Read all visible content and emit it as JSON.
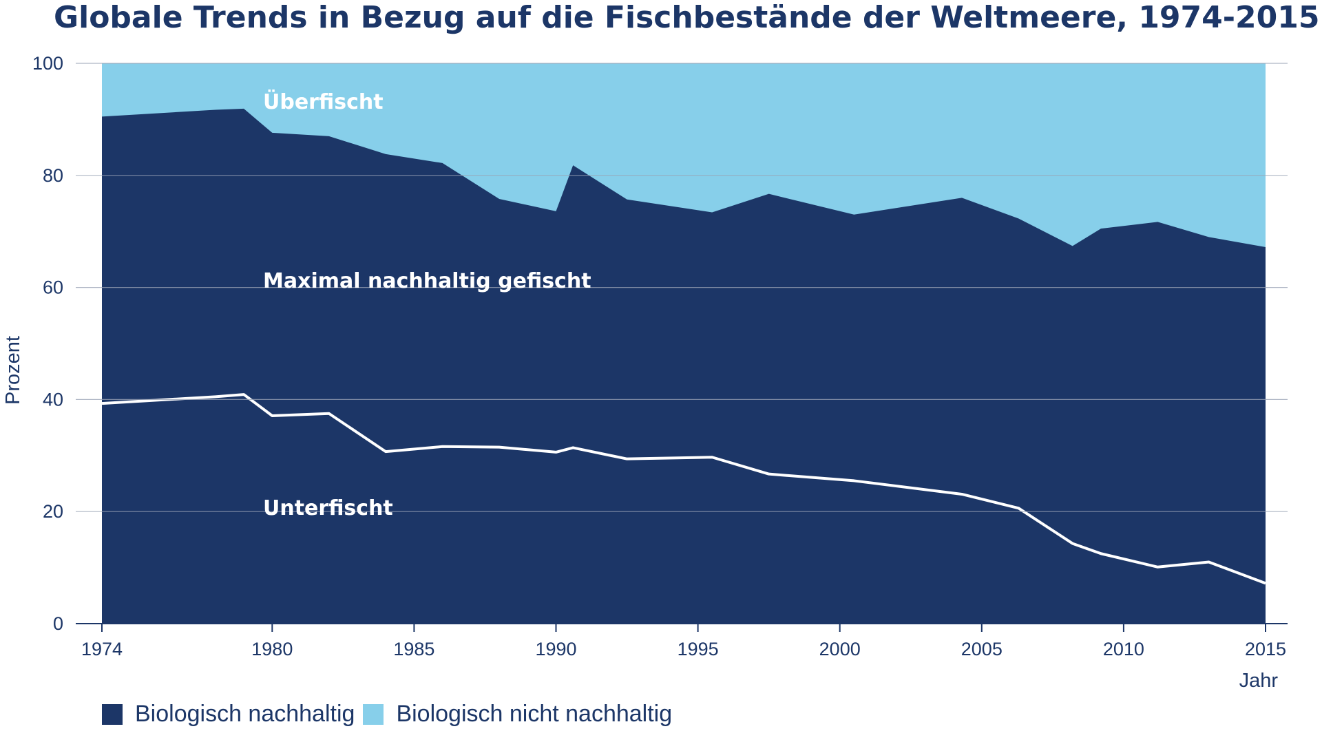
{
  "colors": {
    "sustainable": "#1c3667",
    "unsustainable": "#87cfea",
    "line": "#ffffff",
    "grid": "#9aa3b5",
    "text": "#1c3667"
  },
  "chart_data": {
    "type": "area",
    "title": "Globale Trends in Bezug auf die Fischbestände der Weltmeere, 1974-2015",
    "xlabel": "Jahr",
    "ylabel": "Prozent",
    "xlim": [
      1974,
      2015
    ],
    "ylim": [
      0,
      100
    ],
    "xticks": [
      "1974",
      "1980",
      "1985",
      "1990",
      "1995",
      "2000",
      "2005",
      "2010",
      "2015"
    ],
    "yticks": [
      "0",
      "20",
      "40",
      "60",
      "80",
      "100"
    ],
    "grid": "horizontal",
    "x": [
      1974,
      1978,
      1979,
      1980,
      1982,
      1984,
      1986,
      1988,
      1990,
      1990.6,
      1992.5,
      1995.5,
      1997.5,
      2000.5,
      2004.3,
      2006.3,
      2008.2,
      2009.2,
      2011.2,
      2013,
      2015
    ],
    "series": [
      {
        "name": "Biologisch nachhaltig",
        "values": [
          90.5,
          91.7,
          91.9,
          87.6,
          87.0,
          83.8,
          82.2,
          75.8,
          73.6,
          81.8,
          75.7,
          73.4,
          76.7,
          73.0,
          76.0,
          72.3,
          67.4,
          70.5,
          71.7,
          69.0,
          67.2
        ]
      },
      {
        "name": "Biologisch nicht nachhaltig",
        "values": [
          9.5,
          8.3,
          8.1,
          12.4,
          13.0,
          16.2,
          17.8,
          24.2,
          26.4,
          18.2,
          24.3,
          26.6,
          23.3,
          27.0,
          24.0,
          27.7,
          32.6,
          29.5,
          28.3,
          31.0,
          32.8
        ]
      }
    ],
    "underfished_line": {
      "x": [
        1974,
        1978,
        1979,
        1980,
        1982,
        1984,
        1986,
        1988,
        1990,
        1990.6,
        1992.5,
        1995.5,
        1997.5,
        2000.5,
        2004.3,
        2006.3,
        2008.2,
        2009.2,
        2011.2,
        2013,
        2015
      ],
      "values": [
        39.3,
        40.5,
        40.9,
        37.1,
        37.5,
        30.7,
        31.6,
        31.5,
        30.6,
        31.4,
        29.4,
        29.7,
        26.7,
        25.5,
        23.1,
        20.6,
        14.3,
        12.5,
        10.1,
        11.0,
        7.2
      ]
    },
    "region_labels": {
      "over": "Überfischt",
      "max": "Maximal nachhaltig gefischt",
      "under": "Unterfischt"
    },
    "legend": [
      "Biologisch nachhaltig",
      "Biologisch nicht nachhaltig"
    ],
    "legend_position": "bottom-left"
  }
}
